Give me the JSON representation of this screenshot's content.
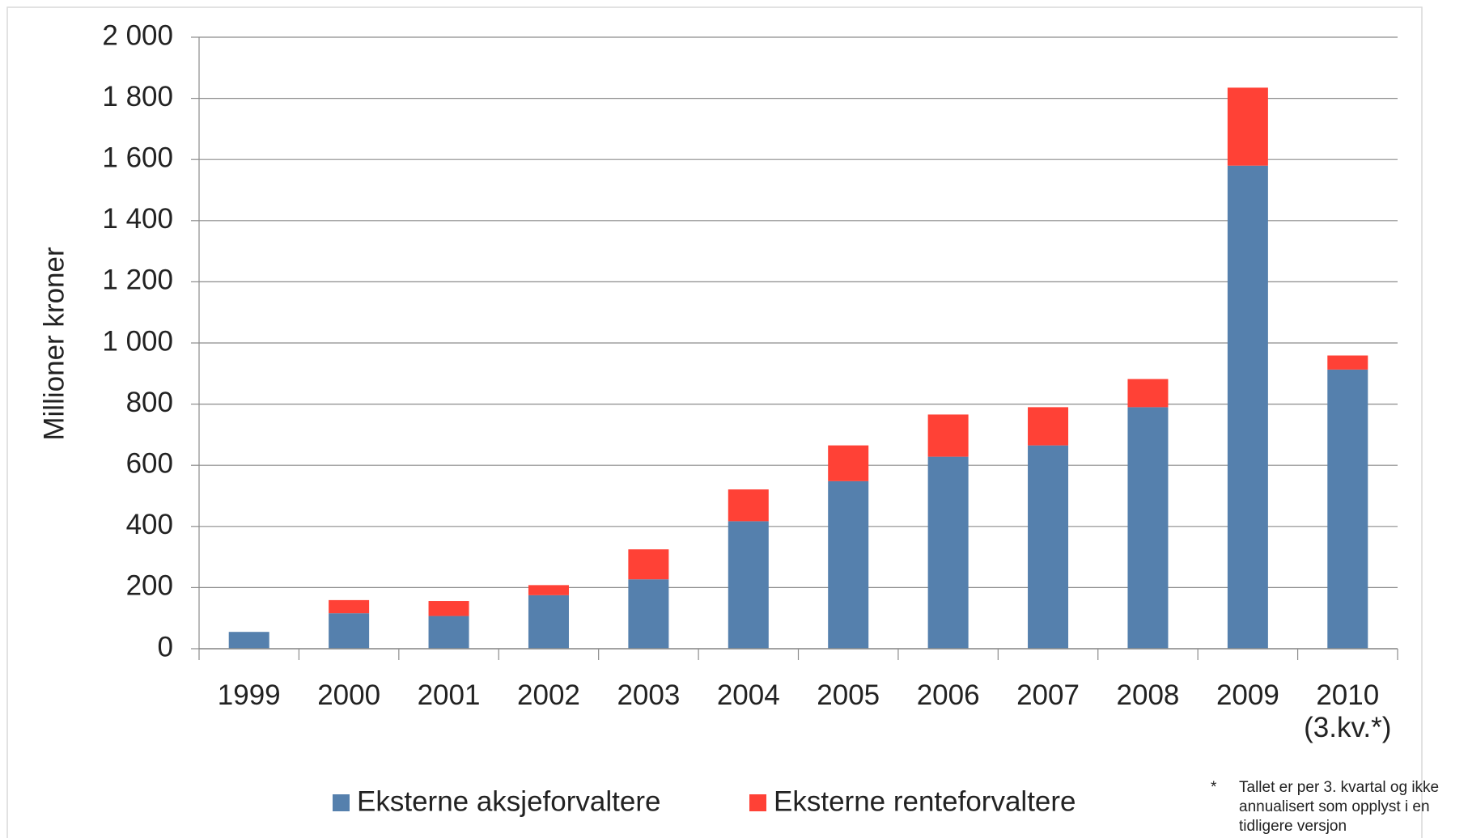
{
  "chart_data": {
    "type": "stacked_bar",
    "y_label": "Millioner kroner",
    "categories": [
      "1999",
      "2000",
      "2001",
      "2002",
      "2003",
      "2004",
      "2005",
      "2006",
      "2007",
      "2008",
      "2009",
      "2010\n(3.kv.*)"
    ],
    "series": [
      {
        "name": "Eksterne aksjeforvaltere",
        "color": "#5580ad",
        "values": [
          55,
          116,
          107,
          175,
          227,
          417,
          548,
          628,
          665,
          790,
          1580,
          913
        ]
      },
      {
        "name": "Eksterne renteforvaltere",
        "color": "#ff4136",
        "values": [
          0,
          43,
          49,
          33,
          98,
          104,
          117,
          138,
          125,
          92,
          255,
          46
        ]
      }
    ],
    "ylim": [
      0,
      2000
    ],
    "yticks": [
      0,
      200,
      400,
      600,
      800,
      {
        "value": 1000,
        "label": "1 000"
      },
      {
        "value": 1200,
        "label": "1 200"
      },
      {
        "value": 1400,
        "label": "1 400"
      },
      {
        "value": 1600,
        "label": "1 600"
      },
      {
        "value": 1800,
        "label": "1 800"
      },
      {
        "value": 2000,
        "label": "2 000"
      }
    ],
    "grid": true,
    "legend": "bottom",
    "footnote_marker": "*",
    "footnote": "Tallet er per 3. kvartal og ikke annualisert som opplyst i en tidligere versjon"
  }
}
